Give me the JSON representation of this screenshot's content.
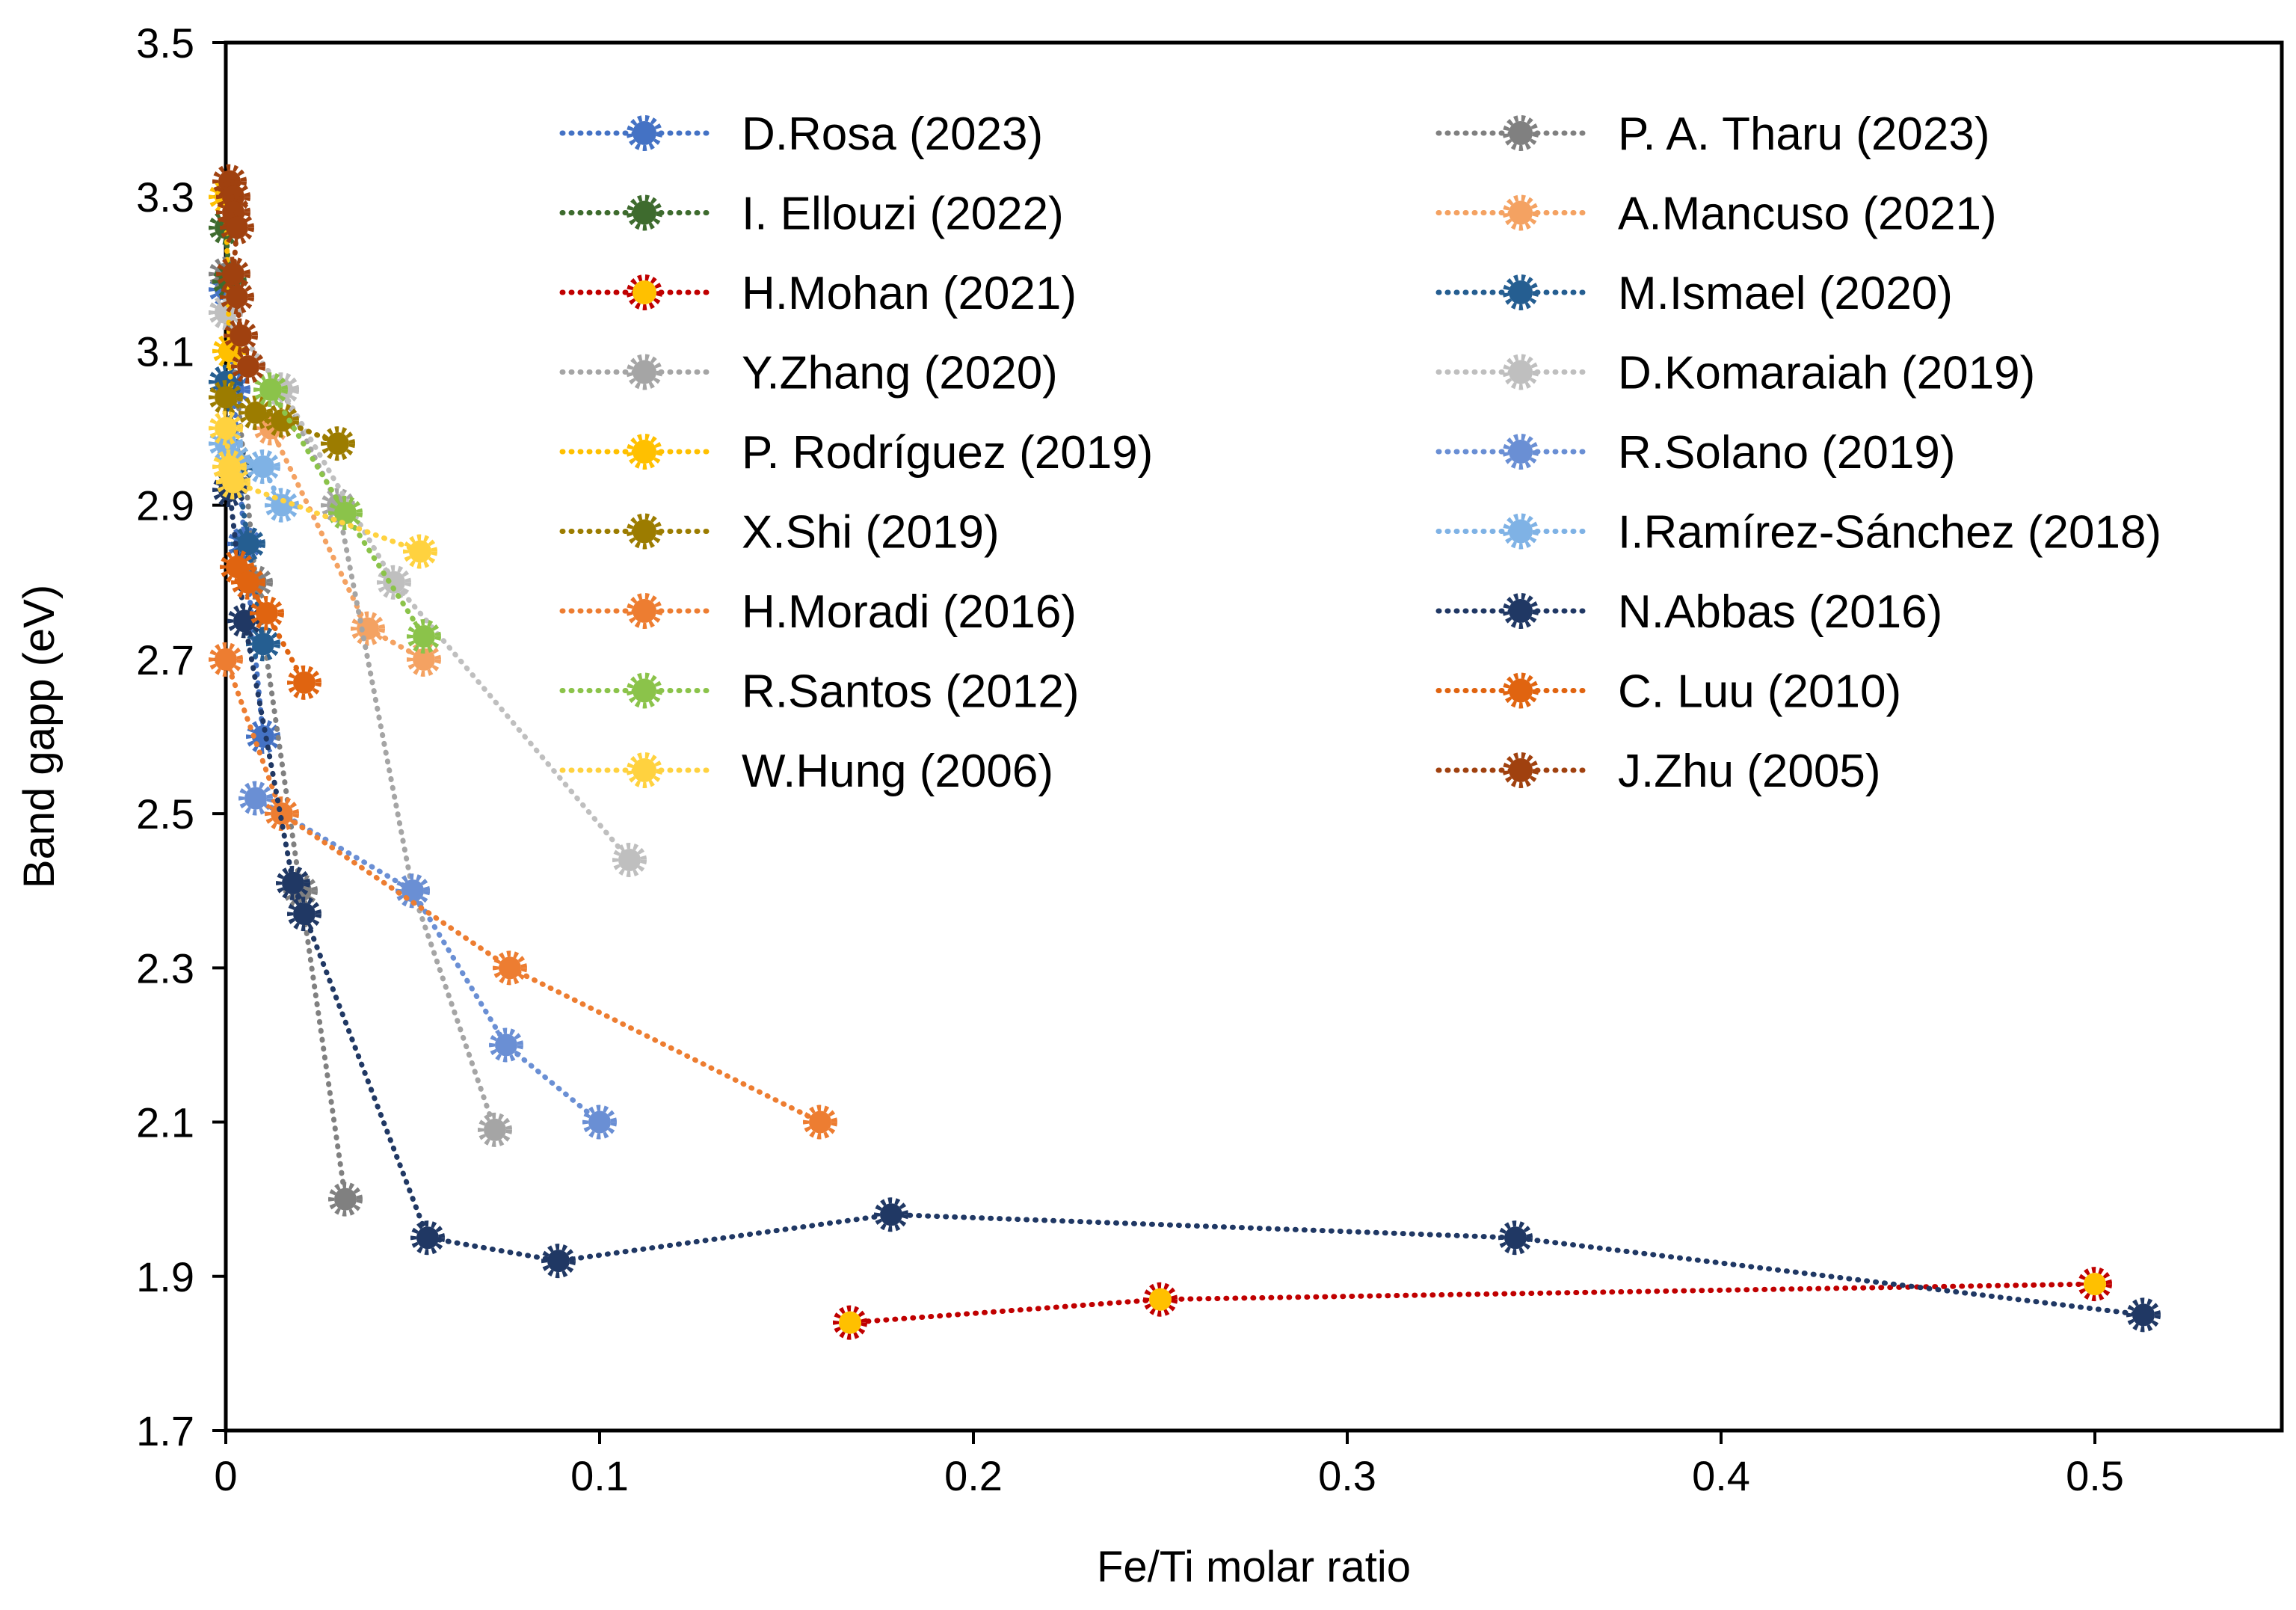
{
  "chart_data": {
    "type": "scatter",
    "title": "",
    "xlabel": "Fe/Ti molar ratio",
    "ylabel": "Band gapp (eV)",
    "xlim": [
      0,
      0.55
    ],
    "ylim": [
      1.7,
      3.5
    ],
    "xticks": [
      0,
      0.1,
      0.2,
      0.3,
      0.4,
      0.5
    ],
    "xtick_labels": [
      "0",
      "0.1",
      "0.2",
      "0.3",
      "0.4",
      "0.5"
    ],
    "yticks": [
      1.7,
      1.9,
      2.1,
      2.3,
      2.5,
      2.7,
      2.9,
      3.1,
      3.3,
      3.5
    ],
    "ytick_labels": [
      "1.7",
      "1.9",
      "2.1",
      "2.3",
      "2.5",
      "2.7",
      "2.9",
      "3.1",
      "3.3",
      "3.5"
    ],
    "grid": false,
    "legend_position": "top-right, two columns",
    "series": [
      {
        "name": "D.Rosa (2023)",
        "color": "#4472C4",
        "marker_edge": "#4472C4",
        "points": [
          [
            0,
            3.18
          ],
          [
            0.002,
            3.05
          ],
          [
            0.005,
            2.85
          ],
          [
            0.01,
            2.6
          ]
        ]
      },
      {
        "name": "P. A. Tharu (2023)",
        "color": "#808080",
        "marker_edge": "#808080",
        "points": [
          [
            0,
            3.2
          ],
          [
            0.008,
            2.8
          ],
          [
            0.02,
            2.4
          ],
          [
            0.032,
            2.0
          ]
        ]
      },
      {
        "name": "I. Ellouzi (2022)",
        "color": "#3E6B2E",
        "marker_edge": "#3E6B2E",
        "points": [
          [
            0,
            3.26
          ],
          [
            0.001,
            3.19
          ]
        ]
      },
      {
        "name": "A.Mancuso  (2021)",
        "color": "#F4A262",
        "marker_edge": "#F4A262",
        "points": [
          [
            0.012,
            3.0
          ],
          [
            0.038,
            2.74
          ],
          [
            0.053,
            2.7
          ]
        ]
      },
      {
        "name": "H.Mohan  (2021)",
        "color": "#C00000",
        "marker_fill": "#FFC000",
        "marker_edge": "#C00000",
        "points": [
          [
            0.167,
            1.84
          ],
          [
            0.25,
            1.87
          ],
          [
            0.5,
            1.89
          ]
        ]
      },
      {
        "name": "M.Ismael (2020)",
        "color": "#255E91",
        "marker_edge": "#255E91",
        "points": [
          [
            0,
            3.06
          ],
          [
            0.003,
            2.95
          ],
          [
            0.006,
            2.85
          ],
          [
            0.01,
            2.72
          ]
        ]
      },
      {
        "name": "Y.Zhang (2020)",
        "color": "#A5A5A5",
        "marker_edge": "#A5A5A5",
        "points": [
          [
            0,
            3.15
          ],
          [
            0.015,
            3.05
          ],
          [
            0.03,
            2.9
          ],
          [
            0.05,
            2.4
          ],
          [
            0.072,
            2.09
          ]
        ]
      },
      {
        "name": "D.Komaraiah  (2019)",
        "color": "#BFBFBF",
        "marker_edge": "#BFBFBF",
        "points": [
          [
            0,
            3.15
          ],
          [
            0.015,
            3.05
          ],
          [
            0.045,
            2.8
          ],
          [
            0.108,
            2.44
          ]
        ]
      },
      {
        "name": "P. Rodríguez  (2019)",
        "color": "#FFC000",
        "marker_edge": "#FFC000",
        "points": [
          [
            0,
            3.3
          ],
          [
            0.001,
            3.1
          ],
          [
            0.002,
            2.96
          ]
        ]
      },
      {
        "name": "R.Solano  (2019)",
        "color": "#6A8FD4",
        "marker_edge": "#6A8FD4",
        "points": [
          [
            0.008,
            2.52
          ],
          [
            0.05,
            2.4
          ],
          [
            0.075,
            2.2
          ],
          [
            0.1,
            2.1
          ]
        ]
      },
      {
        "name": "X.Shi  (2019)",
        "color": "#9C7C00",
        "marker_edge": "#9C7C00",
        "points": [
          [
            0,
            3.04
          ],
          [
            0.008,
            3.02
          ],
          [
            0.015,
            3.01
          ],
          [
            0.03,
            2.98
          ]
        ]
      },
      {
        "name": "I.Ramírez-Sánchez  (2018)",
        "color": "#7FB2E5",
        "marker_edge": "#7FB2E5",
        "points": [
          [
            0,
            2.98
          ],
          [
            0.002,
            2.96
          ],
          [
            0.01,
            2.95
          ],
          [
            0.015,
            2.9
          ]
        ]
      },
      {
        "name": "H.Moradi (2016)",
        "color": "#ED7D31",
        "marker_edge": "#ED7D31",
        "points": [
          [
            0,
            2.7
          ],
          [
            0.015,
            2.5
          ],
          [
            0.076,
            2.3
          ],
          [
            0.159,
            2.1
          ]
        ]
      },
      {
        "name": "N.Abbas  (2016)",
        "color": "#203864",
        "marker_edge": "#203864",
        "points": [
          [
            0.001,
            2.92
          ],
          [
            0.005,
            2.75
          ],
          [
            0.018,
            2.41
          ],
          [
            0.021,
            2.37
          ],
          [
            0.054,
            1.95
          ],
          [
            0.089,
            1.92
          ],
          [
            0.178,
            1.98
          ],
          [
            0.345,
            1.95
          ],
          [
            0.513,
            1.85
          ]
        ]
      },
      {
        "name": "R.Santos  (2012)",
        "color": "#8BC34A",
        "marker_edge": "#8BC34A",
        "points": [
          [
            0.012,
            3.05
          ],
          [
            0.032,
            2.89
          ],
          [
            0.053,
            2.73
          ]
        ]
      },
      {
        "name": "C. Luu (2010)",
        "color": "#E06410",
        "marker_edge": "#E06410",
        "points": [
          [
            0.003,
            2.82
          ],
          [
            0.006,
            2.8
          ],
          [
            0.011,
            2.76
          ],
          [
            0.021,
            2.67
          ]
        ]
      },
      {
        "name": "W.Hung  (2006)",
        "color": "#FFD23F",
        "marker_edge": "#FFD23F",
        "points": [
          [
            0,
            3.0
          ],
          [
            0.001,
            2.95
          ],
          [
            0.002,
            2.93
          ],
          [
            0.052,
            2.84
          ]
        ]
      },
      {
        "name": "J.Zhu  (2005)",
        "color": "#A0410F",
        "marker_edge": "#A0410F",
        "points": [
          [
            0.001,
            3.32
          ],
          [
            0.002,
            3.3
          ],
          [
            0.002,
            3.28
          ],
          [
            0.003,
            3.26
          ],
          [
            0.002,
            3.2
          ],
          [
            0.003,
            3.17
          ],
          [
            0.004,
            3.12
          ],
          [
            0.006,
            3.08
          ]
        ]
      }
    ]
  }
}
